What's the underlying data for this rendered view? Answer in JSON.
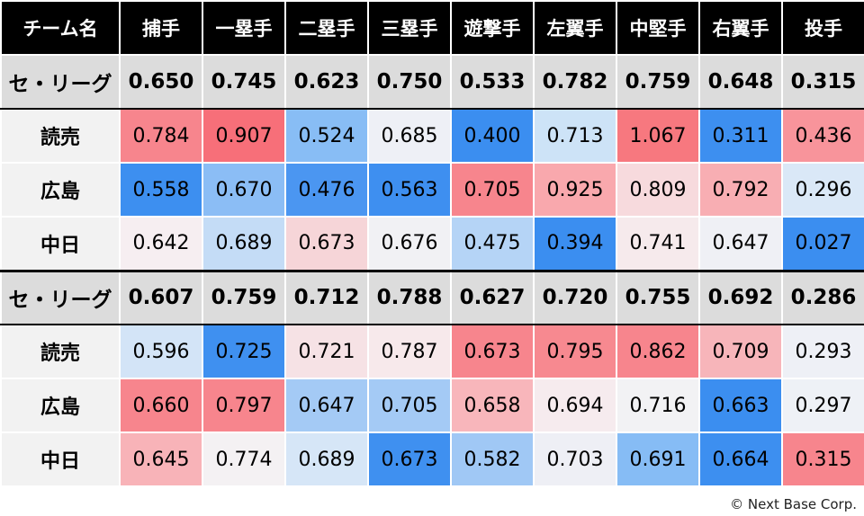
{
  "chart_data": {
    "type": "table",
    "columns": [
      "チーム名",
      "捕手",
      "一塁手",
      "二塁手",
      "三塁手",
      "遊撃手",
      "左翼手",
      "中堅手",
      "右翼手",
      "投手"
    ],
    "blocks": [
      {
        "league": {
          "label": "セ・リーグ",
          "values": [
            "0.650",
            "0.745",
            "0.623",
            "0.750",
            "0.533",
            "0.782",
            "0.759",
            "0.648",
            "0.315"
          ]
        },
        "teams": [
          {
            "label": "読売",
            "values": [
              "0.784",
              "0.907",
              "0.524",
              "0.685",
              "0.400",
              "0.713",
              "1.067",
              "0.311",
              "0.436"
            ],
            "colors": [
              "#f7858d",
              "#f76f79",
              "#88bdf5",
              "#eef0f6",
              "#3b8ef0",
              "#cde3f7",
              "#f7787f",
              "#3d8ff0",
              "#f8949b"
            ]
          },
          {
            "label": "広島",
            "values": [
              "0.558",
              "0.670",
              "0.476",
              "0.563",
              "0.705",
              "0.925",
              "0.809",
              "0.792",
              "0.296"
            ],
            "colors": [
              "#3d8ff0",
              "#8bbdf5",
              "#4b96f1",
              "#3e8ff0",
              "#f7858d",
              "#f9a8ad",
              "#f7dadd",
              "#f8aeb3",
              "#dae8f7"
            ]
          },
          {
            "label": "中日",
            "values": [
              "0.642",
              "0.689",
              "0.673",
              "0.676",
              "0.475",
              "0.394",
              "0.741",
              "0.647",
              "0.027"
            ],
            "colors": [
              "#f6eef1",
              "#c4dcf6",
              "#f6d5d8",
              "#f1f1f4",
              "#b5d4f6",
              "#3b8ef0",
              "#f6eaec",
              "#eff0f5",
              "#3b8ef0"
            ]
          }
        ]
      },
      {
        "league": {
          "label": "セ・リーグ",
          "values": [
            "0.607",
            "0.759",
            "0.712",
            "0.788",
            "0.627",
            "0.720",
            "0.755",
            "0.692",
            "0.286"
          ]
        },
        "teams": [
          {
            "label": "読売",
            "values": [
              "0.596",
              "0.725",
              "0.721",
              "0.787",
              "0.673",
              "0.795",
              "0.862",
              "0.709",
              "0.293"
            ],
            "colors": [
              "#d3e4f7",
              "#3f90f0",
              "#f6e2e5",
              "#f7e9eb",
              "#f7858d",
              "#f78990",
              "#f7858d",
              "#f7b5ba",
              "#eef0f6"
            ]
          },
          {
            "label": "広島",
            "values": [
              "0.660",
              "0.797",
              "0.647",
              "0.705",
              "0.658",
              "0.694",
              "0.716",
              "0.663",
              "0.297"
            ],
            "colors": [
              "#f7858d",
              "#f7858d",
              "#a4caf5",
              "#a4caf5",
              "#f8b6bb",
              "#f6ebee",
              "#f2f2f4",
              "#3b8ef0",
              "#eef1f6"
            ]
          },
          {
            "label": "中日",
            "values": [
              "0.645",
              "0.774",
              "0.689",
              "0.673",
              "0.582",
              "0.703",
              "0.691",
              "0.664",
              "0.315"
            ],
            "colors": [
              "#f8b3b8",
              "#f4f1f3",
              "#d6e6f7",
              "#3f90f0",
              "#a0c8f5",
              "#eeeff5",
              "#86bcf5",
              "#3d8ff0",
              "#f7858d"
            ]
          }
        ]
      }
    ]
  },
  "footer": {
    "credit": "© Next Base Corp."
  }
}
